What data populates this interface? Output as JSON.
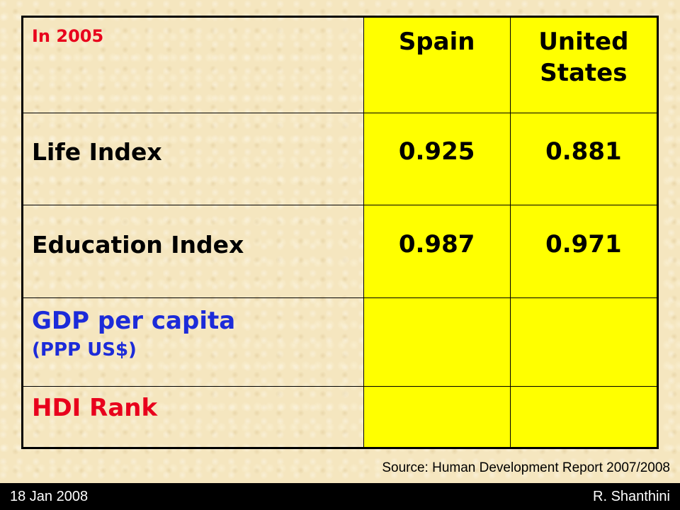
{
  "table": {
    "corner_label": "In 2005",
    "columns": [
      "Spain",
      "United States"
    ],
    "rows": [
      {
        "label": "Life Index",
        "values": [
          "0.925",
          "0.881"
        ]
      },
      {
        "label": "Education Index",
        "values": [
          "0.987",
          "0.971"
        ]
      },
      {
        "label": "GDP per capita",
        "sublabel": "(PPP US$)",
        "values": [
          "",
          ""
        ]
      },
      {
        "label": "HDI Rank",
        "values": [
          "",
          ""
        ]
      }
    ]
  },
  "source": "Source: Human Development Report 2007/2008",
  "footer": {
    "date": "18 Jan 2008",
    "author": "R. Shanthini"
  },
  "colors": {
    "highlight": "#ffff00",
    "red_text": "#e8001c",
    "blue_text": "#1c2bd9",
    "background": "#f5e6bf"
  }
}
